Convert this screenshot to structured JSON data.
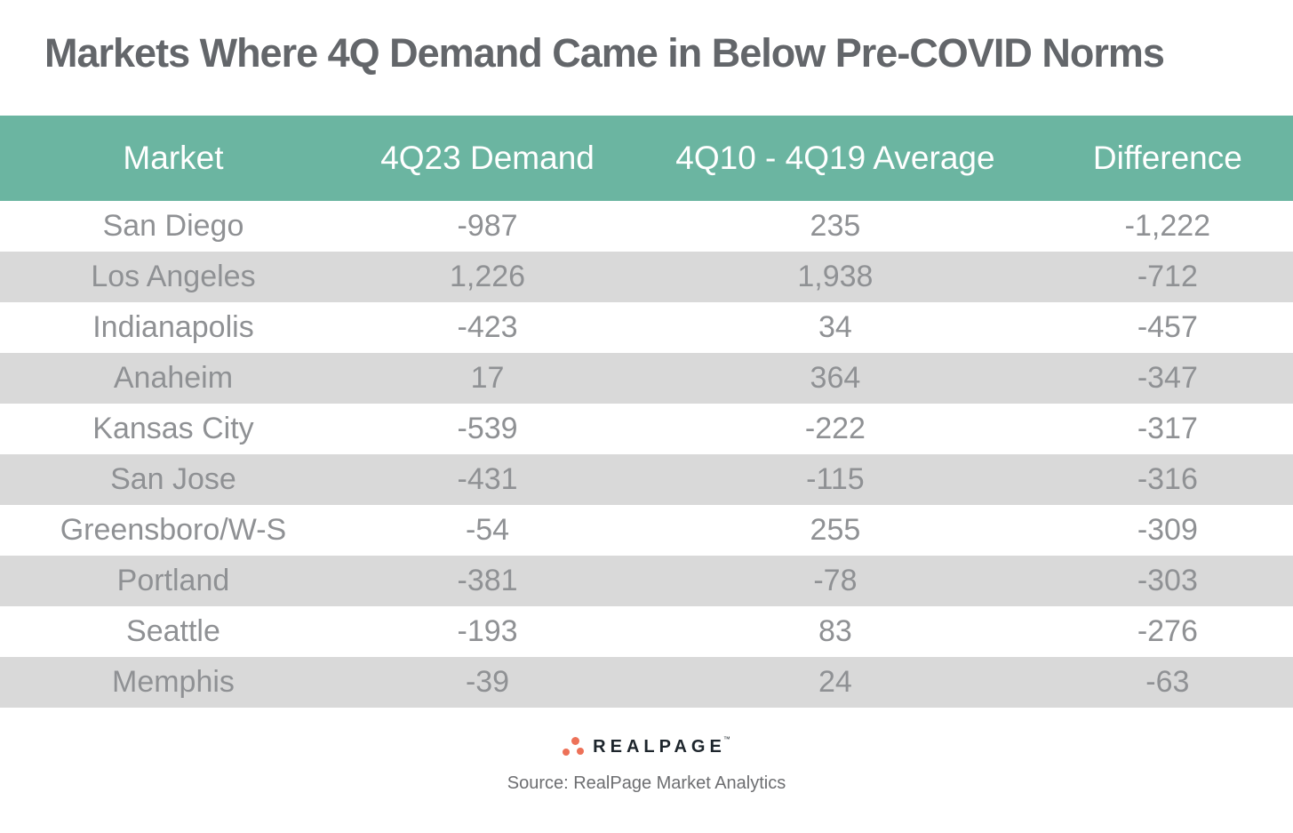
{
  "page": {
    "title": "Markets Where 4Q Demand Came in Below Pre-COVID Norms"
  },
  "chart_data": {
    "type": "table",
    "title": "Markets Where 4Q Demand Came in Below Pre-COVID Norms",
    "columns": [
      "Market",
      "4Q23 Demand",
      "4Q10 - 4Q19 Average",
      "Difference"
    ],
    "rows": [
      [
        "San Diego",
        "-987",
        "235",
        "-1,222"
      ],
      [
        "Los Angeles",
        "1,226",
        "1,938",
        "-712"
      ],
      [
        "Indianapolis",
        "-423",
        "34",
        "-457"
      ],
      [
        "Anaheim",
        "17",
        "364",
        "-347"
      ],
      [
        "Kansas City",
        "-539",
        "-222",
        "-317"
      ],
      [
        "San Jose",
        "-431",
        "-115",
        "-316"
      ],
      [
        "Greensboro/W-S",
        "-54",
        "255",
        "-309"
      ],
      [
        "Portland",
        "-381",
        "-78",
        "-303"
      ],
      [
        "Seattle",
        "-193",
        "83",
        "-276"
      ],
      [
        "Memphis",
        "-39",
        "24",
        "-63"
      ]
    ],
    "values": [
      [
        "San Diego",
        -987,
        235,
        -1222
      ],
      [
        "Los Angeles",
        1226,
        1938,
        -712
      ],
      [
        "Indianapolis",
        -423,
        34,
        -457
      ],
      [
        "Anaheim",
        17,
        364,
        -347
      ],
      [
        "Kansas City",
        -539,
        -222,
        -317
      ],
      [
        "San Jose",
        -431,
        -115,
        -316
      ],
      [
        "Greensboro/W-S",
        -54,
        255,
        -309
      ],
      [
        "Portland",
        -381,
        -78,
        -303
      ],
      [
        "Seattle",
        -193,
        83,
        -276
      ],
      [
        "Memphis",
        -39,
        24,
        -63
      ]
    ],
    "column_keys": [
      "market",
      "demand-4q23",
      "average-4q10-4q19",
      "difference"
    ],
    "row_striping": "white-and-gray-alternating",
    "legend_position": "none",
    "grid": false
  },
  "footer": {
    "logo_text": "REALPAGE",
    "logo_trademark": "™",
    "source": "Source: RealPage Market Analytics"
  },
  "colors": {
    "header_bg": "#6BB5A1",
    "header_text": "#FFFFFF",
    "row_alt_bg": "#D9D9D9",
    "title_text": "#63666A",
    "data_text": "#8F9194",
    "source_text": "#6D6E71",
    "logo_orange": "#ED7158",
    "logo_dark": "#1D252C"
  }
}
